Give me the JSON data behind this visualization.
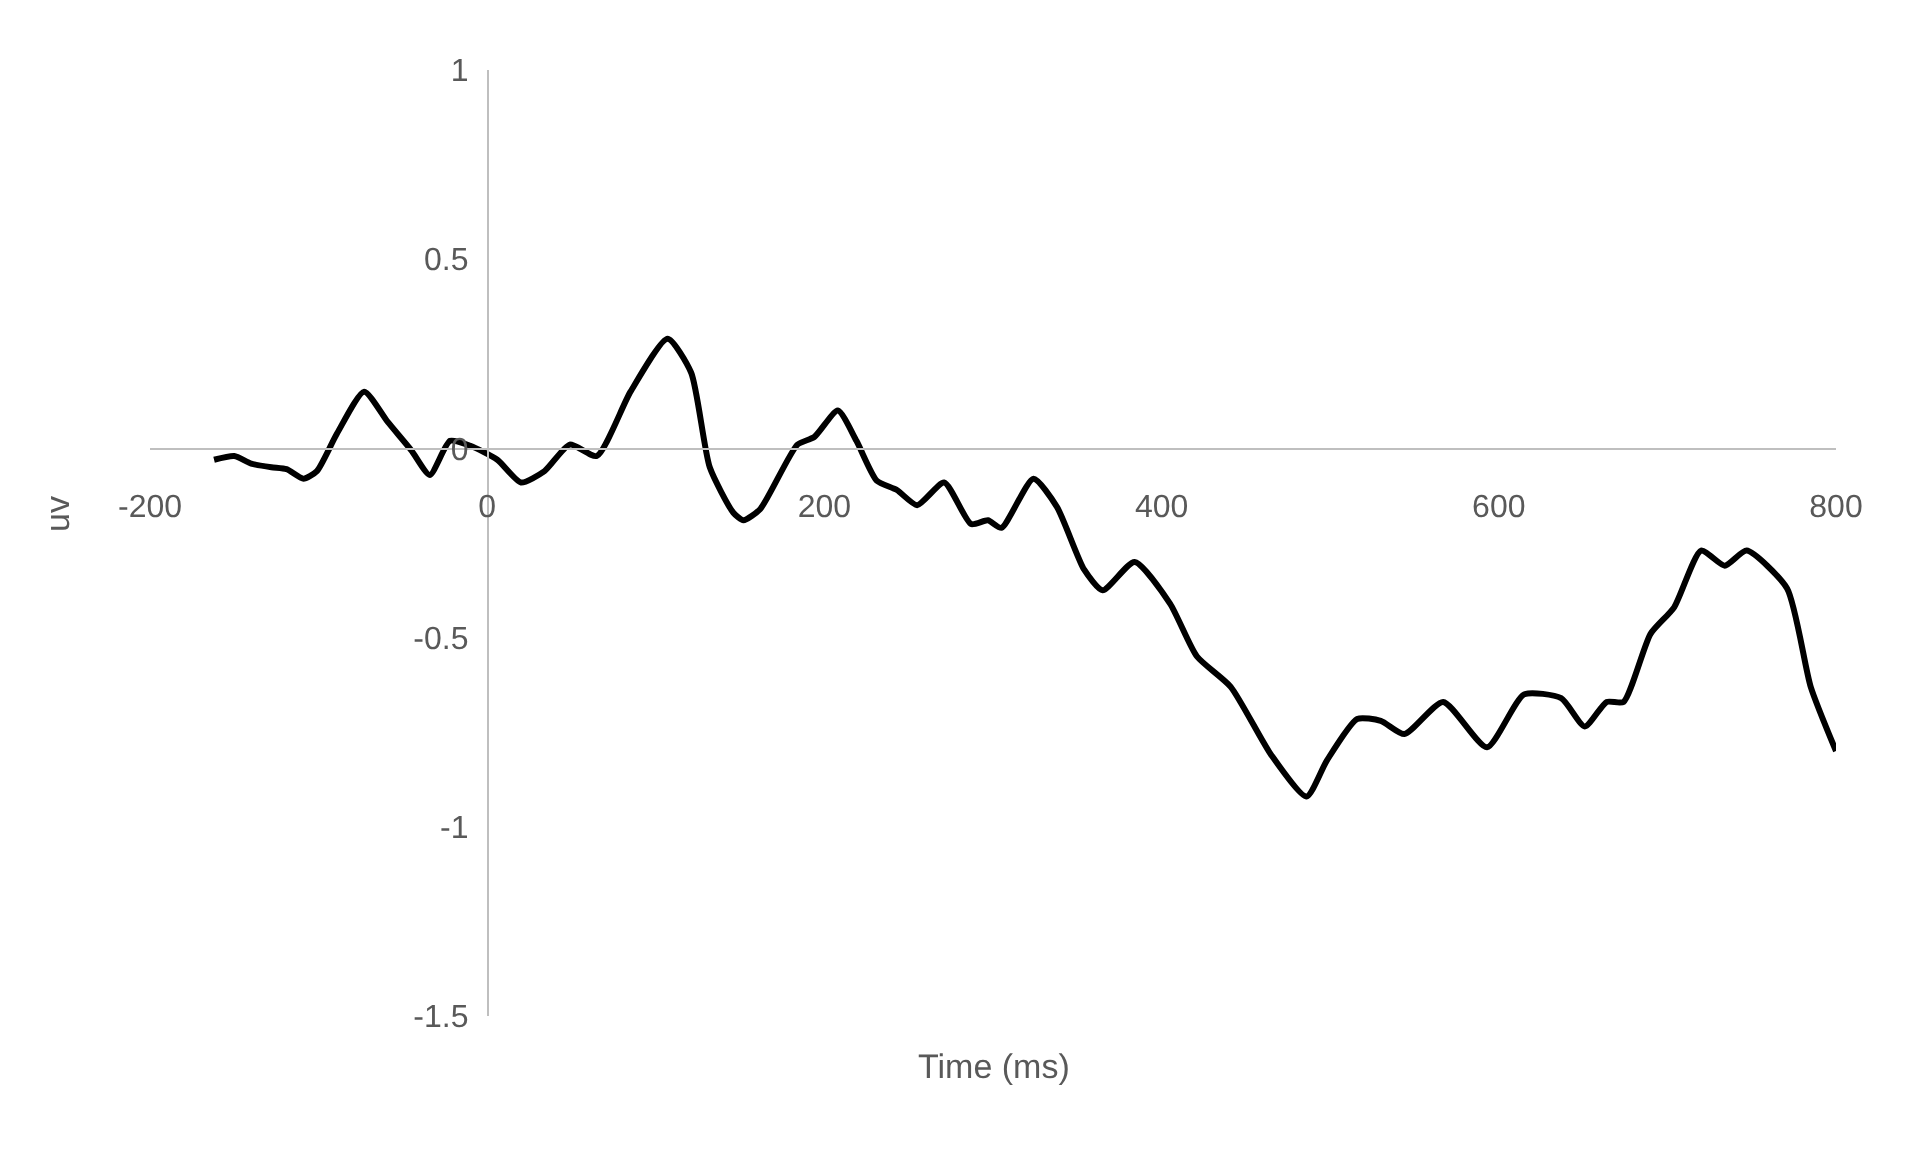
{
  "chart_data": {
    "type": "line",
    "xlabel": "Time (ms)",
    "ylabel": "uv",
    "x": [
      -162,
      -150,
      -140,
      -128,
      -119,
      -109,
      -101,
      -89,
      -73,
      -59,
      -45,
      -34,
      -22,
      -10,
      6,
      20,
      34,
      49,
      65,
      85,
      107,
      121,
      132,
      146,
      152,
      162,
      184,
      194,
      208,
      219,
      231,
      243,
      255,
      271,
      287,
      297,
      305,
      324,
      338,
      354,
      365,
      384,
      405,
      421,
      441,
      465,
      486,
      498,
      516,
      530,
      544,
      567,
      593,
      615,
      637,
      651,
      664,
      674,
      690,
      704,
      720,
      734,
      747,
      771,
      785,
      800
    ],
    "series": [
      {
        "color": "#000000",
        "values": [
          -0.03,
          -0.02,
          -0.04,
          -0.05,
          -0.055,
          -0.08,
          -0.06,
          0.04,
          0.15,
          0.07,
          -0.005,
          -0.07,
          0.02,
          0.007,
          -0.03,
          -0.09,
          -0.06,
          0.01,
          -0.02,
          0.15,
          0.29,
          0.2,
          -0.05,
          -0.17,
          -0.19,
          -0.16,
          0.01,
          0.03,
          0.1,
          0.02,
          -0.085,
          -0.11,
          -0.15,
          -0.09,
          -0.2,
          -0.19,
          -0.21,
          -0.08,
          -0.155,
          -0.32,
          -0.375,
          -0.3,
          -0.41,
          -0.55,
          -0.63,
          -0.81,
          -0.92,
          -0.825,
          -0.715,
          -0.72,
          -0.755,
          -0.67,
          -0.79,
          -0.65,
          -0.66,
          -0.735,
          -0.67,
          -0.67,
          -0.49,
          -0.42,
          -0.27,
          -0.31,
          -0.27,
          -0.37,
          -0.63,
          -0.8
        ]
      }
    ],
    "xlim": [
      -200,
      800
    ],
    "xticks": [
      -200,
      0,
      200,
      400,
      600,
      800
    ],
    "ylim": [
      -1.5,
      1
    ],
    "yticks": [
      -1.5,
      -1,
      -0.5,
      0,
      0.5,
      1
    ],
    "grid": false,
    "marker": "none",
    "line_style": "solid"
  }
}
